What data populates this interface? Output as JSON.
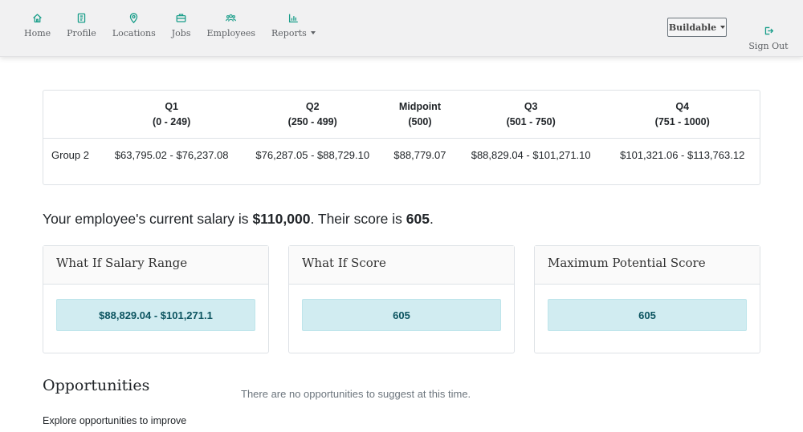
{
  "nav": {
    "items": [
      {
        "label": "Home",
        "icon": "home-icon"
      },
      {
        "label": "Profile",
        "icon": "profile-icon"
      },
      {
        "label": "Locations",
        "icon": "map-pin-icon"
      },
      {
        "label": "Jobs",
        "icon": "briefcase-icon"
      },
      {
        "label": "Employees",
        "icon": "users-icon"
      },
      {
        "label": "Reports",
        "icon": "bar-chart-icon"
      }
    ],
    "company": "Buildable",
    "signout": "Sign Out",
    "accent": "#1a9e8a"
  },
  "table": {
    "headers": [
      {
        "name": "Q1",
        "range": "(0 - 249)"
      },
      {
        "name": "Q2",
        "range": "(250 - 499)"
      },
      {
        "name": "Midpoint",
        "range": "(500)"
      },
      {
        "name": "Q3",
        "range": "(501 - 750)"
      },
      {
        "name": "Q4",
        "range": "(751 - 1000)"
      }
    ],
    "row": {
      "group": "Group 2",
      "cells": [
        "$63,795.02 - $76,237.08",
        "$76,287.05 - $88,729.10",
        "$88,779.07",
        "$88,829.04 - $101,271.10",
        "$101,321.06 - $113,763.12"
      ]
    }
  },
  "summary": {
    "prefix": "Your employee's current salary is ",
    "salary": "$110,000",
    "middle": ". Their score is ",
    "score": "605",
    "suffix": "."
  },
  "cards": [
    {
      "title": "What If Salary Range",
      "value": "$88,829.04 - $101,271.1"
    },
    {
      "title": "What If Score",
      "value": "605"
    },
    {
      "title": "Maximum Potential Score",
      "value": "605"
    }
  ],
  "opportunities": {
    "title": "Opportunities",
    "description": "Explore opportunities to improve",
    "empty": "There are no opportunities to suggest at this time."
  }
}
